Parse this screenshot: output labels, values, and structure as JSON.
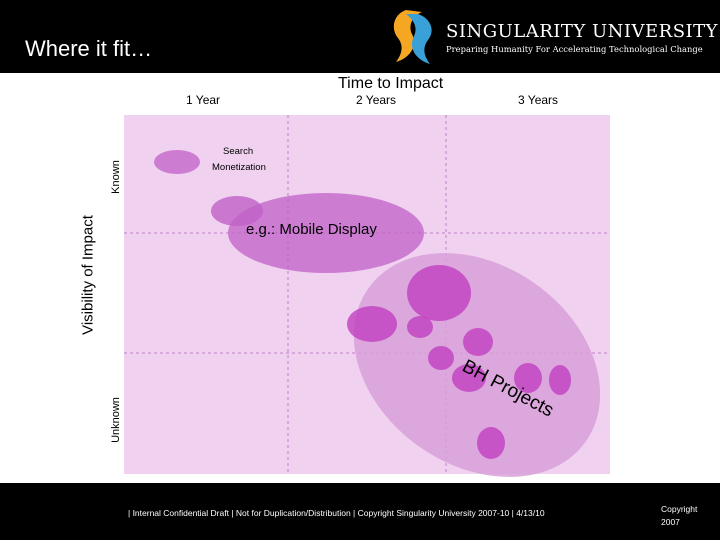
{
  "header": {
    "title": "Where it fit…",
    "logo_name": "SINGULARITY UNIVERSITY",
    "logo_tagline": "Preparing Humanity For Accelerating Technological Change",
    "logo_icon": "singularity-swirl-icon"
  },
  "axes": {
    "x_title": "Time to Impact",
    "x_ticks": [
      "1 Year",
      "2 Years",
      "3 Years"
    ],
    "y_title": "Visibility of Impact",
    "y_ticks": [
      "Known",
      "Unknown"
    ]
  },
  "labels": {
    "search_monetization_line1": "Search",
    "search_monetization_line2": "Monetization",
    "mobile_display": "e.g.: Mobile Display",
    "bh_projects": "BH Projects"
  },
  "footer": {
    "text": "| Internal Confidential Draft | Not for Duplication/Distribution | Copyright Singularity University 2007-10 | 4/13/10",
    "copyright_line1": "Copyright",
    "copyright_line2": "2007"
  },
  "colors": {
    "panel": "#f0d2f0",
    "bubble": "#c060c8",
    "bubble_light": "#d8a0d8",
    "grid": "#c080c8"
  }
}
